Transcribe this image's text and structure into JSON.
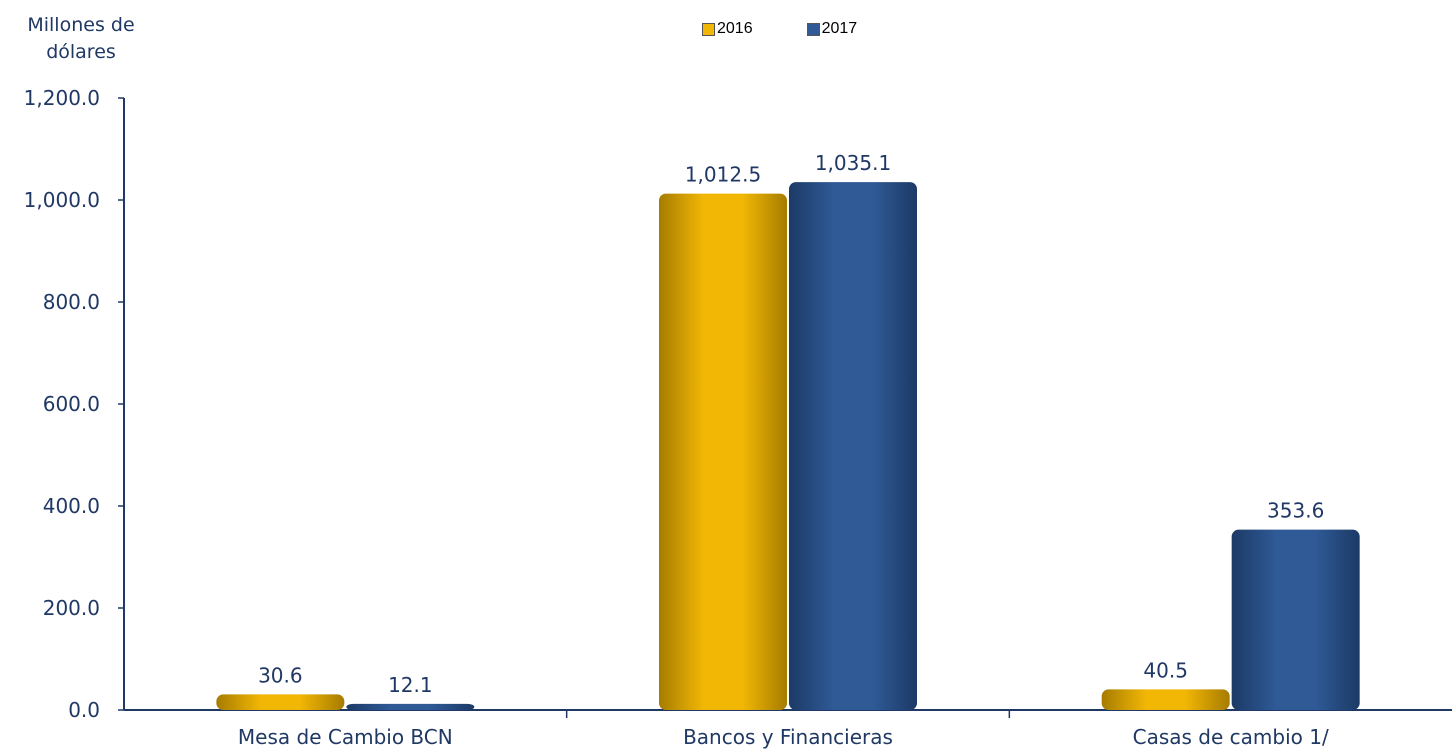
{
  "chart_data": {
    "type": "bar",
    "ylabel_lines": [
      "Millones de",
      "dólares"
    ],
    "categories": [
      "Mesa de Cambio BCN",
      "Bancos y Financieras",
      "Casas de cambio  1/"
    ],
    "series": [
      {
        "name": "2016",
        "values": [
          30.6,
          1012.5,
          40.5
        ],
        "labels": [
          "30.6",
          "1,012.5",
          "40.5"
        ]
      },
      {
        "name": "2017",
        "values": [
          12.1,
          1035.1,
          353.6
        ],
        "labels": [
          "12.1",
          "1,035.1",
          "353.6"
        ]
      }
    ],
    "ylim": [
      0,
      1200
    ],
    "yticks": [
      0,
      200,
      400,
      600,
      800,
      1000,
      1200
    ],
    "ytick_labels": [
      "0.0",
      "200.0",
      "400.0",
      "600.0",
      "800.0",
      "1,000.0",
      "1,200.0"
    ],
    "grid": false,
    "legend_position": "top-center",
    "colors": {
      "series_2016": "#f2b705",
      "series_2016_dark": "#a67c00",
      "series_2017": "#2f5a96",
      "series_2017_dark": "#1c3a66",
      "axis": "#1f3864",
      "text": "#1f3864"
    }
  }
}
